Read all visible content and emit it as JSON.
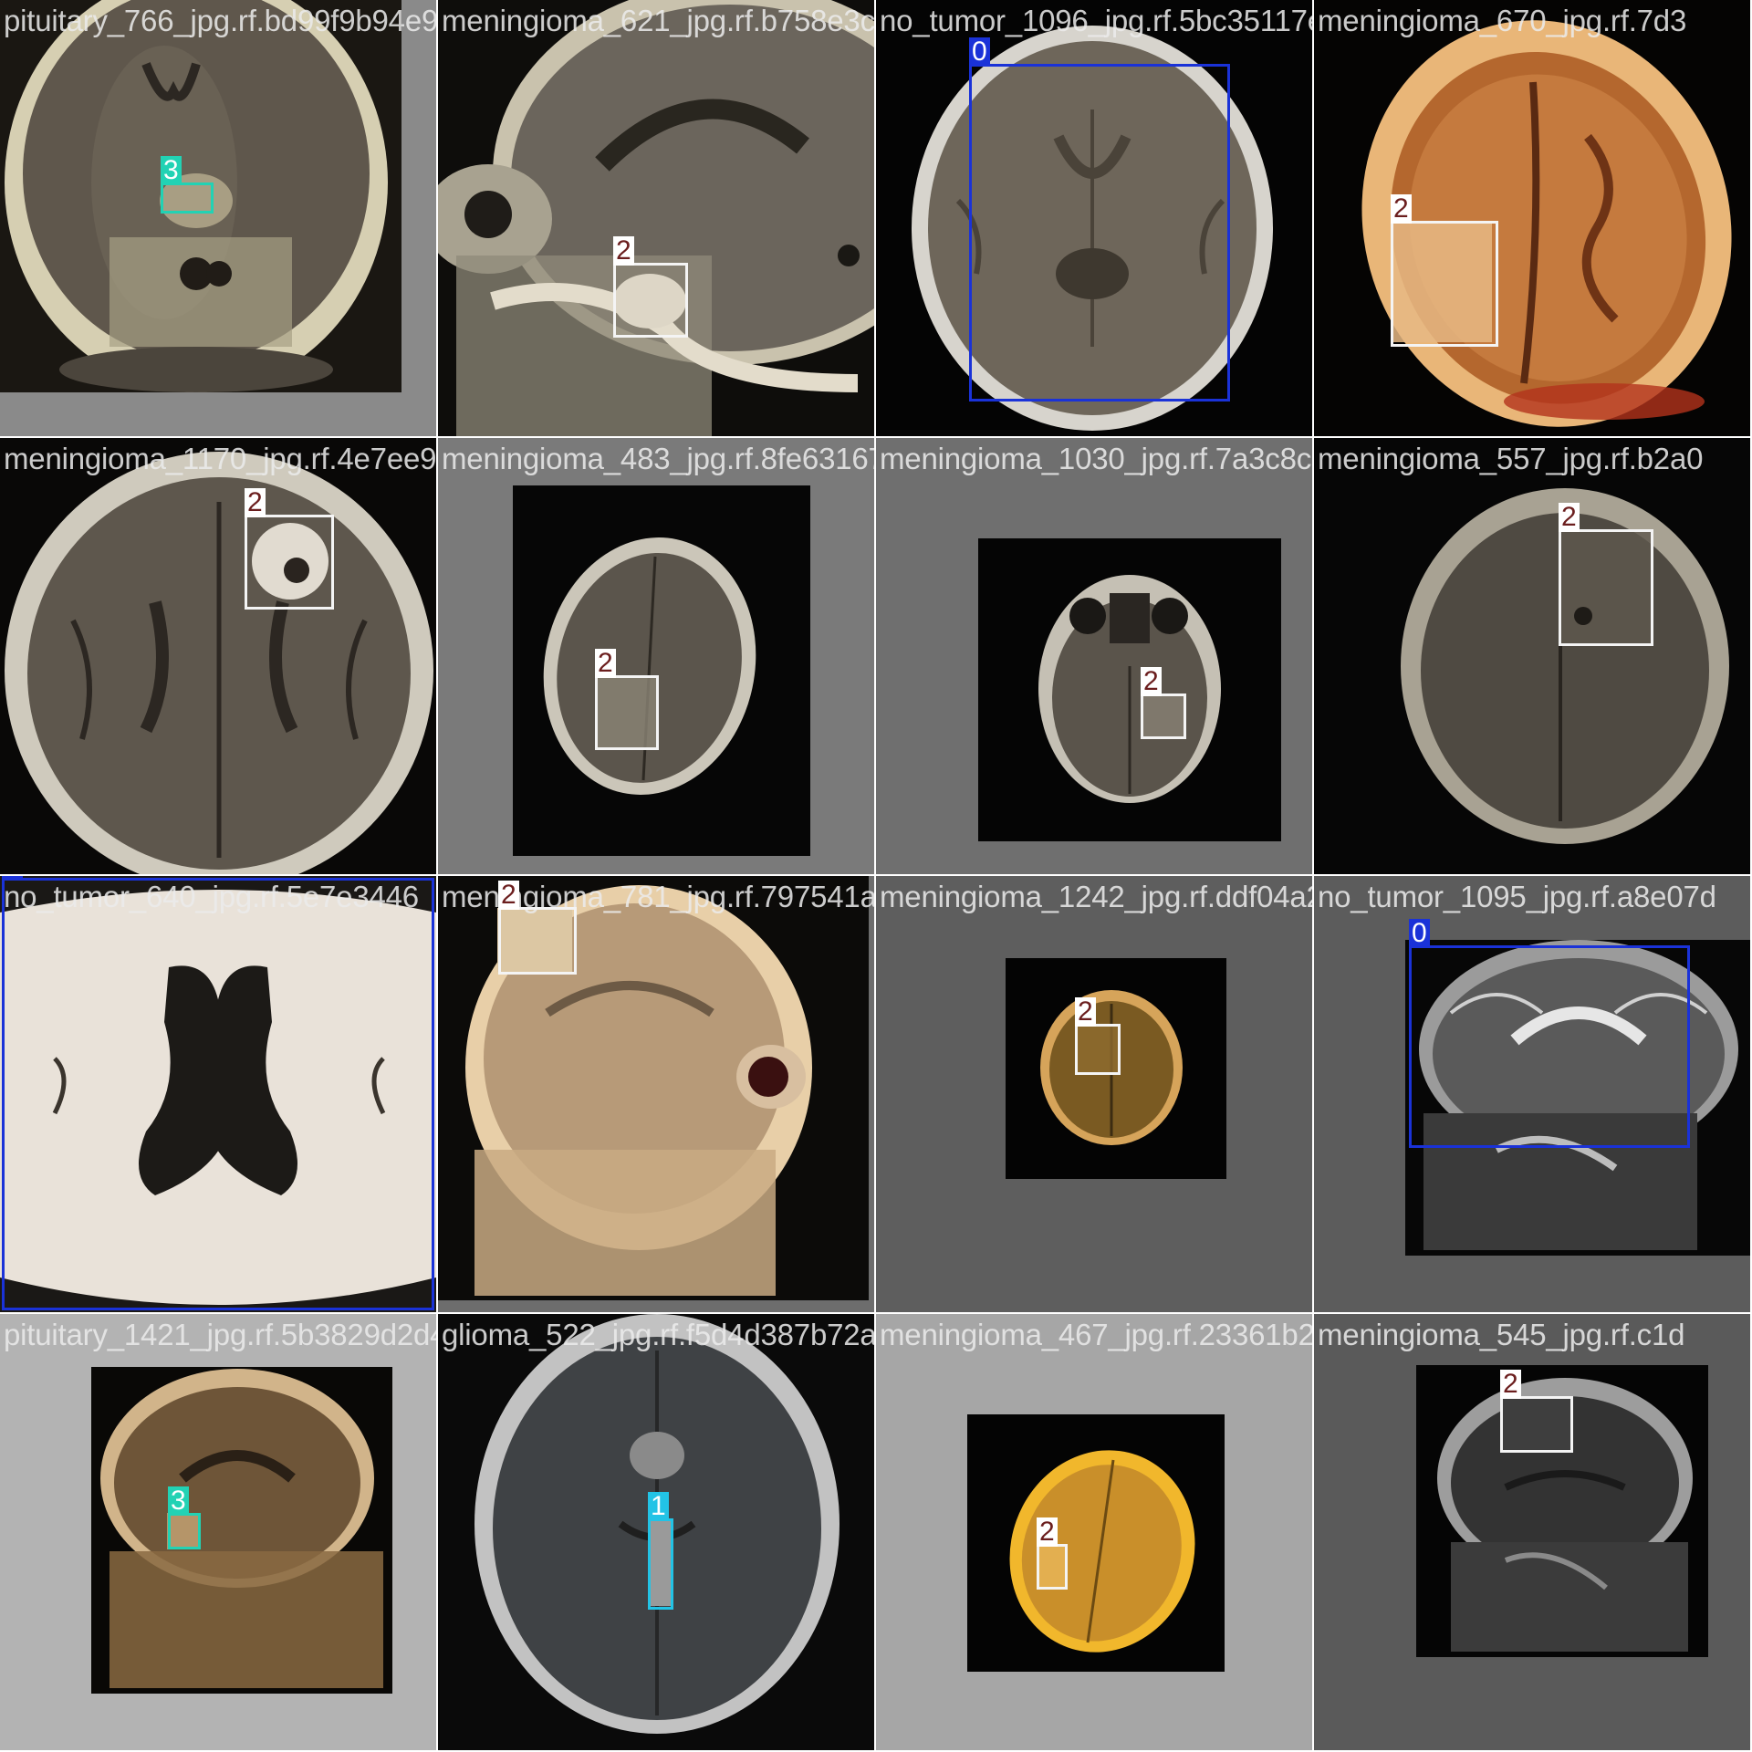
{
  "class_colors": {
    "0": {
      "border": "#1a32d8",
      "tag_bg": "#1a32d8",
      "tag_text": "#ffffff"
    },
    "1": {
      "border": "#22c3e6",
      "tag_bg": "#22c3e6",
      "tag_text": "#ffffff"
    },
    "2": {
      "border": "#f4f4f4",
      "tag_bg": "#ffffff",
      "tag_text": "#6b1e1e"
    },
    "3": {
      "border": "#22d2b4",
      "tag_bg": "#22d2b4",
      "tag_text": "#ffffff"
    }
  },
  "tiles": [
    {
      "filename": "pituitary_766_jpg.rf.bd99f9b94e920fe7996",
      "labels": [
        "3"
      ]
    },
    {
      "filename": "meningioma_621_jpg.rf.b758e3cf7da80d2c1",
      "labels": [
        "2"
      ]
    },
    {
      "filename": "no_tumor_1096_jpg.rf.5bc35117e317c02c",
      "labels": [
        "0"
      ]
    },
    {
      "filename": "meningioma_670_jpg.rf.7d3",
      "labels": [
        "2"
      ]
    },
    {
      "filename": "meningioma_1170_jpg.rf.4e7ee9732af4913",
      "labels": [
        "2"
      ]
    },
    {
      "filename": "meningioma_483_jpg.rf.8fe631676ccb0e74",
      "labels": [
        "2"
      ]
    },
    {
      "filename": "meningioma_1030_jpg.rf.7a3c8c1da5ba320",
      "labels": [
        "2"
      ]
    },
    {
      "filename": "meningioma_557_jpg.rf.b2a0",
      "labels": [
        "2"
      ]
    },
    {
      "filename": "no_tumor_640_jpg.rf.5e7e3446",
      "labels": [
        "0"
      ]
    },
    {
      "filename": "meningioma_781_jpg.rf.797541a0bb0d6f242",
      "labels": [
        "2"
      ]
    },
    {
      "filename": "meningioma_1242_jpg.rf.ddf04a2d9443099",
      "labels": [
        "2"
      ]
    },
    {
      "filename": "no_tumor_1095_jpg.rf.a8e07d",
      "labels": [
        "0"
      ]
    },
    {
      "filename": "pituitary_1421_jpg.rf.5b3829d2d494522ac4",
      "labels": [
        "3"
      ]
    },
    {
      "filename": "glioma_522_jpg.rf.f5d4d387b72a07dae",
      "labels": [
        "1"
      ]
    },
    {
      "filename": "meningioma_467_jpg.rf.23361b2204143a425",
      "labels": [
        "2"
      ]
    },
    {
      "filename": "meningioma_545_jpg.rf.c1d",
      "labels": [
        "2"
      ]
    }
  ]
}
